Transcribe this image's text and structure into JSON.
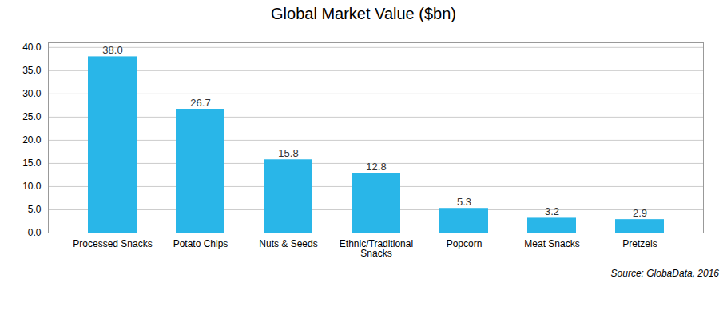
{
  "chart_data": {
    "type": "bar",
    "title": "Global Market Value ($bn)",
    "caption": "Source: GlobaData, 2016",
    "categories": [
      "Processed Snacks",
      "Potato Chips",
      "Nuts & Seeds",
      "Ethnic/Traditional\nSnacks",
      "Popcorn",
      "Meat Snacks",
      "Pretzels"
    ],
    "values": [
      38.0,
      26.7,
      15.8,
      12.8,
      5.3,
      3.2,
      2.9
    ],
    "value_labels": [
      "38.0",
      "26.7",
      "15.8",
      "12.8",
      "5.3",
      "3.2",
      "2.9"
    ],
    "color": "#29b6e8",
    "ylim": [
      0,
      41
    ],
    "yticks": [
      {
        "value": 0,
        "label": "0.0"
      },
      {
        "value": 5,
        "label": "5.0"
      },
      {
        "value": 10,
        "label": "10.0"
      },
      {
        "value": 15,
        "label": "15.0"
      },
      {
        "value": 20,
        "label": "20.0"
      },
      {
        "value": 25,
        "label": "25.0"
      },
      {
        "value": 30,
        "label": "30.0"
      },
      {
        "value": 35,
        "label": "35.0"
      },
      {
        "value": 40,
        "label": "40.0"
      }
    ],
    "grid": true,
    "data_labels": true
  }
}
